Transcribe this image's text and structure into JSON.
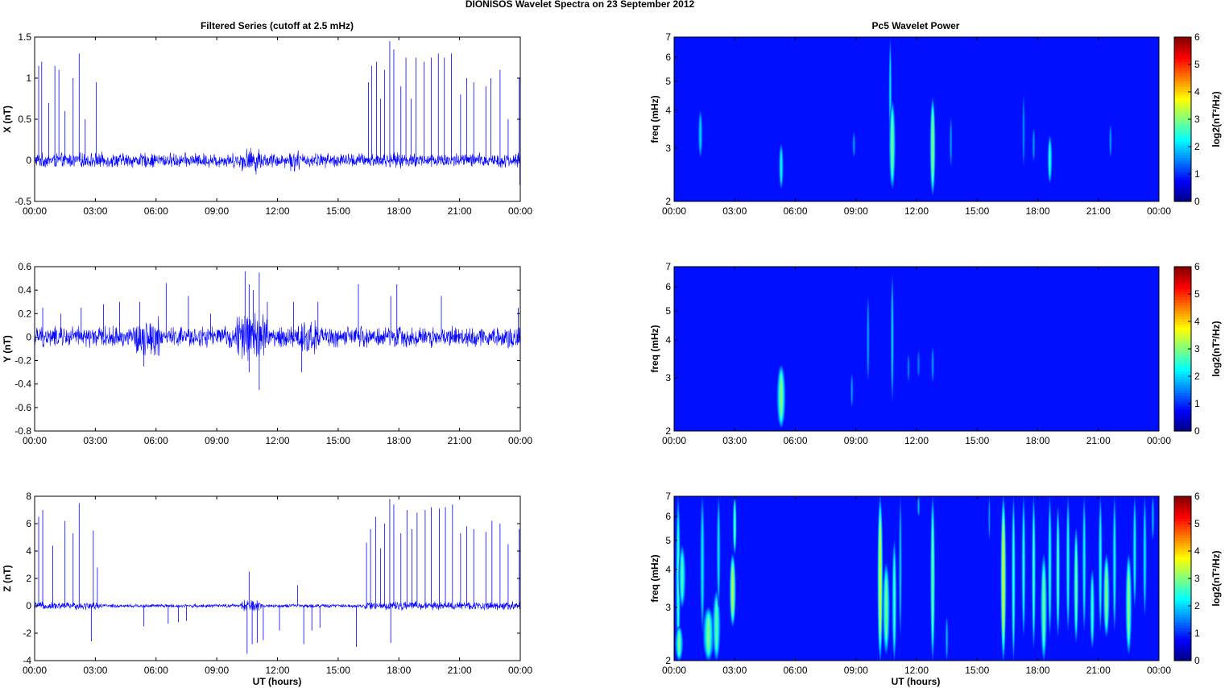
{
  "figure": {
    "title": "DIONISOS Wavelet Spectra on 23 September 2012",
    "left_title": "Filtered Series (cutoff at 2.5 mHz)",
    "right_title": "Pc5 Wavelet Power",
    "xlabel": "UT (hours)"
  },
  "chart_data": [
    {
      "type": "line",
      "name": "filtered-x",
      "ylabel": "X (nT)",
      "xlim": [
        0,
        24
      ],
      "ylim": [
        -0.5,
        1.5
      ],
      "x_ticks": [
        "00:00",
        "03:00",
        "06:00",
        "09:00",
        "12:00",
        "15:00",
        "18:00",
        "21:00",
        "00:00"
      ],
      "y_ticks": [
        "-0.5",
        "0",
        "0.5",
        "1",
        "1.5"
      ],
      "noise_envelope": [
        {
          "x0": 0,
          "x1": 24,
          "amp": 0.08
        },
        {
          "x0": 10.2,
          "x1": 11.2,
          "amp": 0.14
        },
        {
          "x0": 12.6,
          "x1": 13.1,
          "amp": 0.12
        }
      ],
      "spikes": [
        [
          0.2,
          1.15
        ],
        [
          0.35,
          1.2
        ],
        [
          0.7,
          0.7
        ],
        [
          1.0,
          1.15
        ],
        [
          1.2,
          1.1
        ],
        [
          1.5,
          0.6
        ],
        [
          1.9,
          1.0
        ],
        [
          2.2,
          1.3
        ],
        [
          2.5,
          0.5
        ],
        [
          3.05,
          0.95
        ],
        [
          16.5,
          0.95
        ],
        [
          16.65,
          1.15
        ],
        [
          16.9,
          1.2
        ],
        [
          17.1,
          0.75
        ],
        [
          17.3,
          1.1
        ],
        [
          17.55,
          1.45
        ],
        [
          17.75,
          1.35
        ],
        [
          18.1,
          0.9
        ],
        [
          18.35,
          1.25
        ],
        [
          18.6,
          0.75
        ],
        [
          18.85,
          1.25
        ],
        [
          19.25,
          1.2
        ],
        [
          19.6,
          1.25
        ],
        [
          19.95,
          1.3
        ],
        [
          20.25,
          1.25
        ],
        [
          20.6,
          1.3
        ],
        [
          21.05,
          0.8
        ],
        [
          21.35,
          1.0
        ],
        [
          21.7,
          0.95
        ],
        [
          22.3,
          0.9
        ],
        [
          22.55,
          1.0
        ],
        [
          23.0,
          1.1
        ],
        [
          23.4,
          0.5
        ],
        [
          23.95,
          1.0
        ]
      ],
      "neg_spikes": [
        [
          23.98,
          -0.3
        ]
      ],
      "line_color": "#0000ff"
    },
    {
      "type": "line",
      "name": "filtered-y",
      "ylabel": "Y (nT)",
      "xlim": [
        0,
        24
      ],
      "ylim": [
        -0.8,
        0.6
      ],
      "x_ticks": [
        "00:00",
        "03:00",
        "06:00",
        "09:00",
        "12:00",
        "15:00",
        "18:00",
        "21:00",
        "00:00"
      ],
      "y_ticks": [
        "-0.8",
        "-0.6",
        "-0.4",
        "-0.2",
        "0",
        "0.2",
        "0.4",
        "0.6"
      ],
      "noise_envelope": [
        {
          "x0": 0,
          "x1": 24,
          "amp": 0.08
        },
        {
          "x0": 5.0,
          "x1": 6.2,
          "amp": 0.15
        },
        {
          "x0": 10.0,
          "x1": 11.5,
          "amp": 0.2
        },
        {
          "x0": 13.0,
          "x1": 14.0,
          "amp": 0.14
        }
      ],
      "spikes": [
        [
          0.4,
          0.25
        ],
        [
          1.3,
          0.2
        ],
        [
          2.3,
          0.25
        ],
        [
          3.4,
          0.28
        ],
        [
          4.2,
          0.3
        ],
        [
          5.2,
          0.3
        ],
        [
          6.5,
          0.46
        ],
        [
          7.6,
          0.35
        ],
        [
          8.7,
          0.2
        ],
        [
          10.4,
          0.56
        ],
        [
          10.6,
          0.45
        ],
        [
          10.8,
          0.4
        ],
        [
          11.1,
          0.55
        ],
        [
          11.5,
          0.3
        ],
        [
          12.8,
          0.3
        ],
        [
          14.0,
          0.3
        ],
        [
          16.0,
          0.45
        ],
        [
          17.6,
          0.35
        ],
        [
          17.9,
          0.45
        ],
        [
          20.1,
          0.35
        ],
        [
          23.9,
          0.25
        ]
      ],
      "neg_spikes": [
        [
          5.4,
          -0.25
        ],
        [
          10.6,
          -0.3
        ],
        [
          11.1,
          -0.45
        ],
        [
          13.2,
          -0.3
        ]
      ],
      "line_color": "#0000ff"
    },
    {
      "type": "line",
      "name": "filtered-z",
      "ylabel": "Z (nT)",
      "xlim": [
        0,
        24
      ],
      "ylim": [
        -4,
        8
      ],
      "x_ticks": [
        "00:00",
        "03:00",
        "06:00",
        "09:00",
        "12:00",
        "15:00",
        "18:00",
        "21:00",
        "00:00"
      ],
      "y_ticks": [
        "-4",
        "-2",
        "0",
        "2",
        "4",
        "6",
        "8"
      ],
      "noise_envelope": [
        {
          "x0": 0,
          "x1": 3.3,
          "amp": 0.25
        },
        {
          "x0": 3.3,
          "x1": 16.3,
          "amp": 0.12
        },
        {
          "x0": 10.2,
          "x1": 11.2,
          "amp": 0.4
        },
        {
          "x0": 16.3,
          "x1": 24,
          "amp": 0.28
        }
      ],
      "spikes": [
        [
          0.2,
          6.5
        ],
        [
          0.4,
          7.0
        ],
        [
          0.9,
          4.4
        ],
        [
          1.5,
          6.2
        ],
        [
          1.9,
          5.3
        ],
        [
          2.2,
          7.5
        ],
        [
          2.9,
          5.5
        ],
        [
          3.1,
          2.8
        ],
        [
          10.6,
          2.5
        ],
        [
          13.0,
          1.5
        ],
        [
          16.4,
          4.6
        ],
        [
          16.6,
          5.6
        ],
        [
          16.85,
          6.5
        ],
        [
          17.1,
          4.2
        ],
        [
          17.3,
          6.0
        ],
        [
          17.55,
          7.8
        ],
        [
          17.75,
          7.4
        ],
        [
          18.1,
          5.3
        ],
        [
          18.4,
          7.0
        ],
        [
          18.65,
          5.6
        ],
        [
          18.9,
          6.8
        ],
        [
          19.3,
          7.0
        ],
        [
          19.6,
          7.2
        ],
        [
          20.0,
          7.1
        ],
        [
          20.3,
          7.2
        ],
        [
          20.65,
          7.4
        ],
        [
          21.05,
          5.3
        ],
        [
          21.35,
          5.8
        ],
        [
          21.7,
          5.6
        ],
        [
          22.3,
          5.4
        ],
        [
          22.6,
          6.2
        ],
        [
          23.0,
          6.0
        ],
        [
          23.4,
          4.5
        ],
        [
          23.95,
          5.6
        ]
      ],
      "neg_spikes": [
        [
          2.8,
          -2.6
        ],
        [
          5.4,
          -1.5
        ],
        [
          6.6,
          -1.3
        ],
        [
          7.1,
          -1.2
        ],
        [
          7.5,
          -1.1
        ],
        [
          10.5,
          -3.5
        ],
        [
          10.75,
          -2.8
        ],
        [
          11.0,
          -2.7
        ],
        [
          11.3,
          -2.5
        ],
        [
          12.1,
          -1.8
        ],
        [
          13.3,
          -2.8
        ],
        [
          13.7,
          -1.8
        ],
        [
          14.1,
          -1.6
        ],
        [
          15.9,
          -3.0
        ],
        [
          17.6,
          -2.7
        ]
      ],
      "line_color": "#0000ff"
    },
    {
      "type": "heatmap",
      "name": "wavelet-power-x",
      "ylabel": "freq (mHz)",
      "yscale": "log",
      "xlim": [
        0,
        24
      ],
      "ylim": [
        2,
        7
      ],
      "x_ticks": [
        "00:00",
        "03:00",
        "06:00",
        "09:00",
        "12:00",
        "15:00",
        "18:00",
        "21:00",
        "00:00"
      ],
      "y_ticks": [
        "2",
        "3",
        "4",
        "5",
        "6",
        "7"
      ],
      "colorbar_label": "log2(nT²/Hz)",
      "colorbar_ticks": [
        "0",
        "1",
        "2",
        "3",
        "4",
        "5",
        "6"
      ],
      "clim": [
        0,
        6
      ],
      "colormap": "jet",
      "blobs": [
        {
          "t": 1.3,
          "f0": 2.8,
          "f1": 4.0,
          "w": 0.12,
          "p": 1.4
        },
        {
          "t": 5.3,
          "f0": 2.2,
          "f1": 3.1,
          "w": 0.12,
          "p": 1.8
        },
        {
          "t": 8.9,
          "f0": 2.8,
          "f1": 3.4,
          "w": 0.08,
          "p": 1.0
        },
        {
          "t": 10.7,
          "f0": 2.9,
          "f1": 6.9,
          "w": 0.08,
          "p": 1.6
        },
        {
          "t": 10.8,
          "f0": 2.2,
          "f1": 4.3,
          "w": 0.16,
          "p": 2.6
        },
        {
          "t": 12.8,
          "f0": 2.1,
          "f1": 4.4,
          "w": 0.14,
          "p": 2.9
        },
        {
          "t": 13.7,
          "f0": 2.6,
          "f1": 3.8,
          "w": 0.08,
          "p": 1.0
        },
        {
          "t": 17.3,
          "f0": 2.6,
          "f1": 4.5,
          "w": 0.08,
          "p": 0.9
        },
        {
          "t": 17.8,
          "f0": 2.7,
          "f1": 3.5,
          "w": 0.08,
          "p": 1.0
        },
        {
          "t": 18.6,
          "f0": 2.3,
          "f1": 3.3,
          "w": 0.12,
          "p": 2.0
        },
        {
          "t": 21.6,
          "f0": 2.8,
          "f1": 3.6,
          "w": 0.08,
          "p": 1.0
        }
      ]
    },
    {
      "type": "heatmap",
      "name": "wavelet-power-y",
      "ylabel": "freq (mHz)",
      "yscale": "log",
      "xlim": [
        0,
        24
      ],
      "ylim": [
        2,
        7
      ],
      "x_ticks": [
        "00:00",
        "03:00",
        "06:00",
        "09:00",
        "12:00",
        "15:00",
        "18:00",
        "21:00",
        "00:00"
      ],
      "y_ticks": [
        "2",
        "3",
        "4",
        "5",
        "6",
        "7"
      ],
      "colorbar_label": "log2(nT²/Hz)",
      "colorbar_ticks": [
        "0",
        "1",
        "2",
        "3",
        "4",
        "5",
        "6"
      ],
      "clim": [
        0,
        6
      ],
      "colormap": "jet",
      "blobs": [
        {
          "t": 5.3,
          "f0": 2.05,
          "f1": 3.3,
          "w": 0.22,
          "p": 2.7
        },
        {
          "t": 8.8,
          "f0": 2.4,
          "f1": 3.1,
          "w": 0.08,
          "p": 1.0
        },
        {
          "t": 9.6,
          "f0": 2.9,
          "f1": 5.6,
          "w": 0.08,
          "p": 1.1
        },
        {
          "t": 10.8,
          "f0": 2.5,
          "f1": 6.6,
          "w": 0.08,
          "p": 1.5
        },
        {
          "t": 11.6,
          "f0": 2.9,
          "f1": 3.6,
          "w": 0.08,
          "p": 0.8
        },
        {
          "t": 12.1,
          "f0": 3.0,
          "f1": 3.7,
          "w": 0.08,
          "p": 0.8
        },
        {
          "t": 12.8,
          "f0": 2.9,
          "f1": 3.8,
          "w": 0.08,
          "p": 1.0
        }
      ]
    },
    {
      "type": "heatmap",
      "name": "wavelet-power-z",
      "ylabel": "freq (mHz)",
      "yscale": "log",
      "xlim": [
        0,
        24
      ],
      "ylim": [
        2,
        7
      ],
      "x_ticks": [
        "00:00",
        "03:00",
        "06:00",
        "09:00",
        "12:00",
        "15:00",
        "18:00",
        "21:00",
        "00:00"
      ],
      "y_ticks": [
        "2",
        "3",
        "4",
        "5",
        "6",
        "7"
      ],
      "colorbar_label": "log2(nT²/Hz)",
      "colorbar_ticks": [
        "0",
        "1",
        "2",
        "3",
        "4",
        "5",
        "6"
      ],
      "clim": [
        0,
        6
      ],
      "colormap": "jet",
      "blobs": [
        {
          "t": 0.2,
          "f0": 2.0,
          "f1": 7.0,
          "w": 0.12,
          "p": 2.2
        },
        {
          "t": 0.4,
          "f0": 3.0,
          "f1": 4.8,
          "w": 0.18,
          "p": 2.2
        },
        {
          "t": 0.25,
          "f0": 2.0,
          "f1": 2.6,
          "w": 0.2,
          "p": 2.5
        },
        {
          "t": 1.4,
          "f0": 2.5,
          "f1": 7.0,
          "w": 0.12,
          "p": 1.6
        },
        {
          "t": 1.7,
          "f0": 2.0,
          "f1": 3.0,
          "w": 0.28,
          "p": 2.6
        },
        {
          "t": 2.1,
          "f0": 2.0,
          "f1": 3.4,
          "w": 0.2,
          "p": 2.4
        },
        {
          "t": 2.2,
          "f0": 3.0,
          "f1": 7.0,
          "w": 0.1,
          "p": 1.6
        },
        {
          "t": 2.9,
          "f0": 2.6,
          "f1": 4.5,
          "w": 0.16,
          "p": 3.2
        },
        {
          "t": 3.0,
          "f0": 4.5,
          "f1": 7.0,
          "w": 0.1,
          "p": 2.4
        },
        {
          "t": 10.2,
          "f0": 2.0,
          "f1": 7.0,
          "w": 0.14,
          "p": 3.4
        },
        {
          "t": 10.5,
          "f0": 2.1,
          "f1": 4.2,
          "w": 0.18,
          "p": 2.6
        },
        {
          "t": 10.9,
          "f0": 2.0,
          "f1": 5.0,
          "w": 0.12,
          "p": 2.2
        },
        {
          "t": 11.2,
          "f0": 2.4,
          "f1": 7.0,
          "w": 0.08,
          "p": 1.4
        },
        {
          "t": 12.1,
          "f0": 6.0,
          "f1": 7.0,
          "w": 0.08,
          "p": 1.2
        },
        {
          "t": 12.8,
          "f0": 2.0,
          "f1": 7.0,
          "w": 0.12,
          "p": 2.6
        },
        {
          "t": 13.5,
          "f0": 2.0,
          "f1": 2.8,
          "w": 0.08,
          "p": 1.2
        },
        {
          "t": 15.6,
          "f0": 5.0,
          "f1": 7.0,
          "w": 0.06,
          "p": 1.0
        },
        {
          "t": 16.3,
          "f0": 2.0,
          "f1": 7.0,
          "w": 0.14,
          "p": 3.5
        },
        {
          "t": 16.8,
          "f0": 2.0,
          "f1": 7.0,
          "w": 0.1,
          "p": 2.2
        },
        {
          "t": 17.3,
          "f0": 2.4,
          "f1": 7.0,
          "w": 0.1,
          "p": 2.0
        },
        {
          "t": 17.8,
          "f0": 2.2,
          "f1": 7.0,
          "w": 0.1,
          "p": 2.3
        },
        {
          "t": 18.3,
          "f0": 2.0,
          "f1": 4.5,
          "w": 0.16,
          "p": 2.6
        },
        {
          "t": 18.6,
          "f0": 2.4,
          "f1": 7.0,
          "w": 0.1,
          "p": 2.0
        },
        {
          "t": 19.0,
          "f0": 2.4,
          "f1": 6.5,
          "w": 0.1,
          "p": 2.4
        },
        {
          "t": 19.5,
          "f0": 2.5,
          "f1": 7.0,
          "w": 0.1,
          "p": 2.0
        },
        {
          "t": 19.9,
          "f0": 2.3,
          "f1": 5.5,
          "w": 0.12,
          "p": 2.6
        },
        {
          "t": 20.3,
          "f0": 2.5,
          "f1": 7.0,
          "w": 0.1,
          "p": 1.8
        },
        {
          "t": 20.7,
          "f0": 2.2,
          "f1": 4.0,
          "w": 0.12,
          "p": 2.2
        },
        {
          "t": 21.1,
          "f0": 2.5,
          "f1": 7.0,
          "w": 0.1,
          "p": 2.0
        },
        {
          "t": 21.4,
          "f0": 2.4,
          "f1": 4.5,
          "w": 0.16,
          "p": 2.8
        },
        {
          "t": 21.8,
          "f0": 2.5,
          "f1": 7.0,
          "w": 0.1,
          "p": 1.8
        },
        {
          "t": 22.5,
          "f0": 2.1,
          "f1": 4.5,
          "w": 0.16,
          "p": 2.8
        },
        {
          "t": 22.8,
          "f0": 3.0,
          "f1": 7.0,
          "w": 0.1,
          "p": 1.8
        },
        {
          "t": 23.3,
          "f0": 2.8,
          "f1": 7.0,
          "w": 0.1,
          "p": 1.6
        },
        {
          "t": 23.7,
          "f0": 5.0,
          "f1": 7.0,
          "w": 0.08,
          "p": 1.2
        }
      ]
    }
  ]
}
